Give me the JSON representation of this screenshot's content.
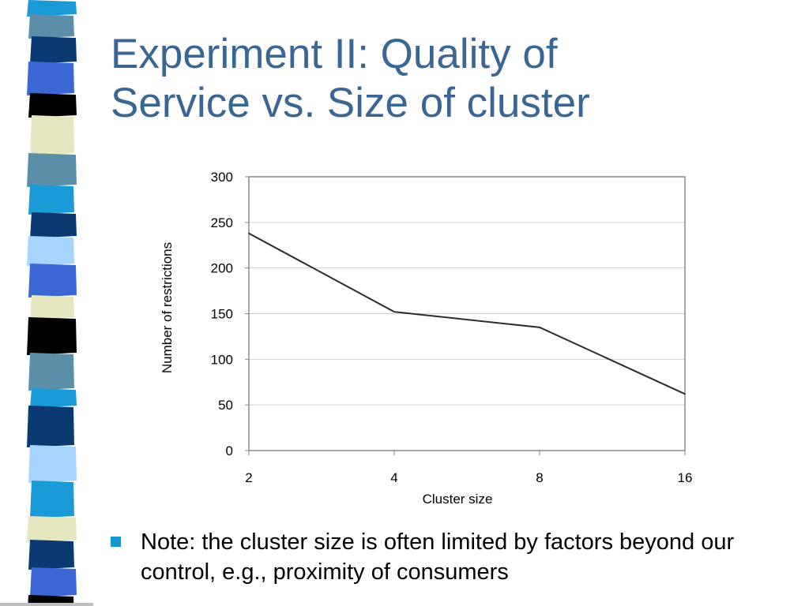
{
  "slide": {
    "title_line1": "Experiment II: Quality of",
    "title_line2": "Service vs. Size of cluster",
    "note": "Note: the cluster size is often limited by factors beyond our control, e.g., proximity of consumers"
  },
  "colors": {
    "title": "#3a6694",
    "bullet": "#1796cf",
    "line": "#2b2b2b",
    "stripes": [
      "#1a9ad6",
      "#5b8fa8",
      "#0b3a73",
      "#3a67d4",
      "#000000",
      "#e6e6c0",
      "#a7d3ff"
    ]
  },
  "chart_data": {
    "type": "line",
    "categories": [
      "2",
      "4",
      "8",
      "16"
    ],
    "series": [
      {
        "values": [
          238,
          152,
          135,
          62
        ]
      }
    ],
    "xlabel": "Cluster size",
    "ylabel": "Number of restrictions",
    "ylim": [
      0,
      300
    ],
    "yticks": [
      0,
      50,
      100,
      150,
      200,
      250,
      300
    ],
    "grid": true,
    "legend": "none"
  }
}
